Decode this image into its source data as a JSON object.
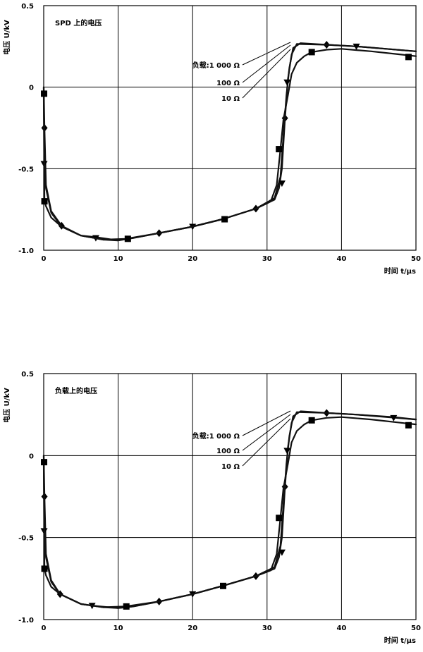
{
  "chart_data": [
    {
      "type": "line",
      "title": "SPD 上的电压",
      "ylabel": "电压 U/kV",
      "xlabel": "时间 t/μs",
      "xlim": [
        0,
        50
      ],
      "ylim": [
        -1.0,
        0.5
      ],
      "x_ticks": [
        "0",
        "10",
        "20",
        "30",
        "40",
        "50"
      ],
      "y_ticks": [
        "0.5",
        "0",
        "-0.5",
        "-1.0"
      ],
      "grid": true,
      "legend_labels": [
        "负载:1 000 Ω",
        "100 Ω",
        "10 Ω"
      ],
      "series": [
        {
          "name": "负载:1 000 Ω",
          "marker": "diamond",
          "x": [
            0,
            0.1,
            0.3,
            1,
            2.4,
            5,
            8,
            10,
            12,
            15.5,
            20,
            24,
            28.5,
            31,
            31.8,
            32.2,
            32.6,
            33,
            33.5,
            34.5,
            38,
            42,
            46,
            50
          ],
          "y": [
            0,
            -0.25,
            -0.6,
            -0.76,
            -0.85,
            -0.91,
            -0.935,
            -0.94,
            -0.925,
            -0.895,
            -0.855,
            -0.81,
            -0.745,
            -0.68,
            -0.55,
            -0.3,
            -0.05,
            0.12,
            0.24,
            0.27,
            0.26,
            0.25,
            0.235,
            0.22
          ],
          "markers_x": [
            0.1,
            2.4,
            15.5,
            28.5,
            32.4,
            38
          ],
          "markers_y": [
            -0.25,
            -0.85,
            -0.895,
            -0.745,
            -0.19,
            0.26
          ]
        },
        {
          "name": "100 Ω",
          "marker": "triangle-down",
          "x": [
            0,
            0.1,
            0.3,
            1,
            2.4,
            5,
            7,
            10,
            12,
            15.5,
            20,
            24,
            28.5,
            31,
            31.6,
            32,
            32.4,
            32.8,
            33.3,
            34,
            38,
            42,
            46,
            50
          ],
          "y": [
            0,
            -0.47,
            -0.62,
            -0.77,
            -0.855,
            -0.91,
            -0.92,
            -0.94,
            -0.925,
            -0.895,
            -0.855,
            -0.81,
            -0.745,
            -0.69,
            -0.62,
            -0.5,
            -0.2,
            0.05,
            0.2,
            0.265,
            0.26,
            0.25,
            0.235,
            0.22
          ],
          "markers_x": [
            0.05,
            7,
            20,
            32,
            32.7,
            42
          ],
          "markers_y": [
            -0.47,
            -0.925,
            -0.855,
            -0.59,
            0.03,
            0.25
          ]
        },
        {
          "name": "10 Ω",
          "marker": "square",
          "x": [
            0,
            0.1,
            0.3,
            1,
            2.4,
            5,
            8,
            11,
            15.5,
            20,
            24,
            28.5,
            30.5,
            31.3,
            31.8,
            32.2,
            32.8,
            33.3,
            34,
            35,
            36,
            38,
            40,
            44,
            48,
            50
          ],
          "y": [
            -0.04,
            -0.7,
            -0.73,
            -0.8,
            -0.855,
            -0.91,
            -0.935,
            -0.93,
            -0.895,
            -0.855,
            -0.81,
            -0.745,
            -0.7,
            -0.6,
            -0.38,
            -0.2,
            -0.05,
            0.08,
            0.15,
            0.19,
            0.215,
            0.23,
            0.235,
            0.22,
            0.2,
            0.19
          ],
          "markers_x": [
            0.05,
            0.1,
            11.3,
            24.3,
            31.6,
            36,
            49
          ],
          "markers_y": [
            -0.04,
            -0.7,
            -0.93,
            -0.81,
            -0.38,
            0.215,
            0.185
          ]
        }
      ]
    },
    {
      "type": "line",
      "title": "负载上的电压",
      "ylabel": "电压 U/kV",
      "xlabel": "时间 t/μs",
      "xlim": [
        0,
        50
      ],
      "ylim": [
        -1.0,
        0.5
      ],
      "x_ticks": [
        "0",
        "10",
        "20",
        "30",
        "40",
        "50"
      ],
      "y_ticks": [
        "0.5",
        "0",
        "-0.5",
        "-1.0"
      ],
      "grid": true,
      "legend_labels": [
        "负载:1 000 Ω",
        "100 Ω",
        "10 Ω"
      ],
      "series": [
        {
          "name": "负载:1 000 Ω",
          "marker": "diamond",
          "x": [
            0,
            0.1,
            0.3,
            1,
            2.2,
            5,
            8,
            10,
            12,
            15.5,
            20,
            24,
            28.5,
            31,
            31.8,
            32.2,
            32.6,
            33,
            33.5,
            34.5,
            38,
            42,
            46,
            50
          ],
          "y": [
            0,
            -0.25,
            -0.6,
            -0.76,
            -0.845,
            -0.905,
            -0.925,
            -0.93,
            -0.92,
            -0.89,
            -0.845,
            -0.795,
            -0.735,
            -0.68,
            -0.55,
            -0.3,
            -0.05,
            0.12,
            0.24,
            0.27,
            0.26,
            0.25,
            0.235,
            0.22
          ],
          "markers_x": [
            0.1,
            2.2,
            15.5,
            28.5,
            32.4,
            38
          ],
          "markers_y": [
            -0.25,
            -0.845,
            -0.89,
            -0.735,
            -0.19,
            0.26
          ]
        },
        {
          "name": "100 Ω",
          "marker": "triangle-down",
          "x": [
            0,
            0.1,
            0.3,
            1,
            2.2,
            5,
            6.5,
            10,
            12,
            15.5,
            20,
            24,
            28.5,
            31,
            31.6,
            32,
            32.4,
            32.8,
            33.3,
            34,
            38,
            42,
            47,
            50
          ],
          "y": [
            0,
            -0.46,
            -0.62,
            -0.77,
            -0.845,
            -0.905,
            -0.915,
            -0.93,
            -0.92,
            -0.89,
            -0.845,
            -0.795,
            -0.735,
            -0.69,
            -0.62,
            -0.5,
            -0.2,
            0.05,
            0.2,
            0.265,
            0.26,
            0.25,
            0.235,
            0.22
          ],
          "markers_x": [
            0.05,
            6.5,
            20,
            32,
            32.7,
            47
          ],
          "markers_y": [
            -0.46,
            -0.915,
            -0.845,
            -0.59,
            0.03,
            0.23
          ]
        },
        {
          "name": "10 Ω",
          "marker": "square",
          "x": [
            0,
            0.1,
            0.3,
            1,
            2.2,
            5,
            8,
            11,
            15.5,
            20,
            24,
            28.5,
            30.5,
            31.3,
            31.8,
            32.2,
            32.8,
            33.3,
            34,
            35,
            36,
            38,
            40,
            44,
            48,
            50
          ],
          "y": [
            -0.04,
            -0.69,
            -0.73,
            -0.8,
            -0.845,
            -0.905,
            -0.925,
            -0.92,
            -0.89,
            -0.845,
            -0.795,
            -0.735,
            -0.7,
            -0.6,
            -0.38,
            -0.2,
            -0.05,
            0.08,
            0.15,
            0.19,
            0.215,
            0.23,
            0.235,
            0.22,
            0.2,
            0.19
          ],
          "markers_x": [
            0.05,
            0.1,
            11.1,
            24.1,
            31.6,
            36,
            49
          ],
          "markers_y": [
            -0.04,
            -0.69,
            -0.92,
            -0.795,
            -0.38,
            0.215,
            0.185
          ]
        }
      ]
    }
  ]
}
